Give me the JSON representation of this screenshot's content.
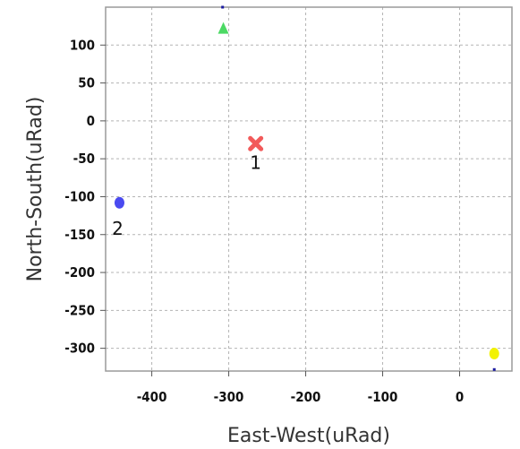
{
  "chart_data": {
    "type": "scatter",
    "xlabel": "East-West(uRad)",
    "ylabel": "North-South(uRad)",
    "xlim": [
      -460,
      68
    ],
    "ylim": [
      -330,
      150
    ],
    "x_ticks": [
      -400,
      -300,
      -200,
      -100,
      0
    ],
    "y_ticks": [
      100,
      50,
      0,
      -50,
      -100,
      -150,
      -200,
      -250,
      -300
    ],
    "grid": true,
    "points": [
      {
        "x": -265,
        "y": -30,
        "label": "1",
        "marker": "x",
        "color": "#f25a5a"
      },
      {
        "x": -442,
        "y": -108,
        "label": "2",
        "marker": "circle",
        "color": "#4a4af0"
      },
      {
        "x": -307,
        "y": 122,
        "label": "",
        "marker": "triangle",
        "color": "#4cd964"
      },
      {
        "x": 45,
        "y": -307,
        "label": "",
        "marker": "circle",
        "color": "#f2f200"
      },
      {
        "x": -308,
        "y": 150,
        "label": "",
        "marker": "dot",
        "color": "#1a1aa0"
      },
      {
        "x": 45,
        "y": -328,
        "label": "",
        "marker": "dot",
        "color": "#1a1aa0"
      }
    ]
  }
}
